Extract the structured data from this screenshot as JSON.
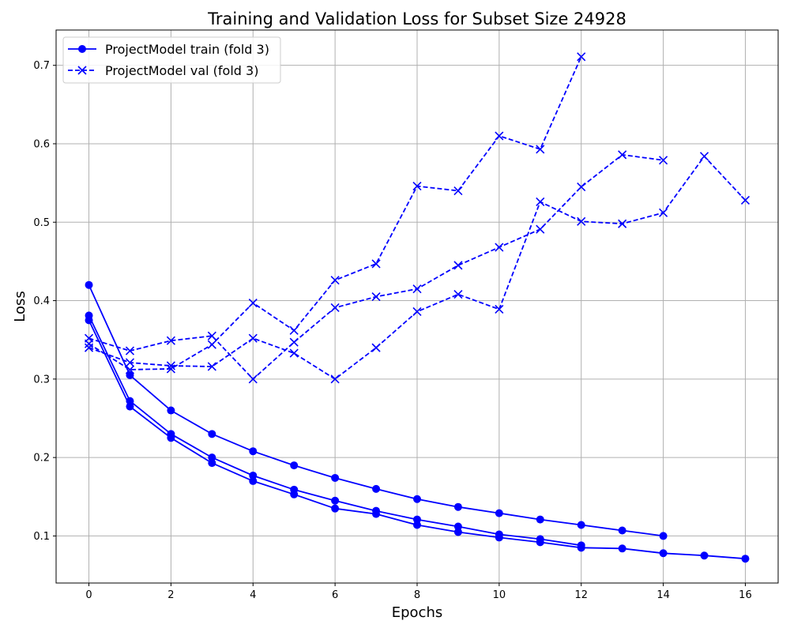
{
  "chart_data": {
    "type": "line",
    "title": "Training and Validation Loss for Subset Size 24928",
    "xlabel": "Epochs",
    "ylabel": "Loss",
    "xlim": [
      -0.8,
      16.8
    ],
    "ylim": [
      0.04,
      0.745
    ],
    "xticks": [
      0,
      2,
      4,
      6,
      8,
      10,
      12,
      14,
      16
    ],
    "yticks": [
      0.1,
      0.2,
      0.3,
      0.4,
      0.5,
      0.6,
      0.7
    ],
    "grid": true,
    "legend_position": "top-left",
    "color": "#0000ff",
    "legend": [
      {
        "label": "ProjectModel train (fold 3)",
        "style": "solid",
        "marker": "circle"
      },
      {
        "label": "ProjectModel val (fold 3)",
        "style": "dashed",
        "marker": "x"
      }
    ],
    "series": [
      {
        "kind": "train",
        "x": [
          0,
          1,
          2,
          3,
          4,
          5,
          6,
          7,
          8,
          9,
          10,
          11,
          12,
          13,
          14
        ],
        "y": [
          0.42,
          0.305,
          0.26,
          0.23,
          0.208,
          0.19,
          0.174,
          0.16,
          0.147,
          0.137,
          0.129,
          0.121,
          0.114,
          0.107,
          0.1
        ]
      },
      {
        "kind": "train",
        "x": [
          0,
          1,
          2,
          3,
          4,
          5,
          6,
          7,
          8,
          9,
          10,
          11,
          12
        ],
        "y": [
          0.381,
          0.272,
          0.23,
          0.2,
          0.177,
          0.159,
          0.145,
          0.132,
          0.121,
          0.112,
          0.102,
          0.096,
          0.088
        ]
      },
      {
        "kind": "train",
        "x": [
          0,
          1,
          2,
          3,
          4,
          5,
          6,
          7,
          8,
          9,
          10,
          11,
          12,
          13,
          14,
          15,
          16
        ],
        "y": [
          0.375,
          0.265,
          0.225,
          0.193,
          0.17,
          0.153,
          0.135,
          0.128,
          0.114,
          0.105,
          0.098,
          0.092,
          0.085,
          0.084,
          0.078,
          0.075,
          0.071
        ]
      },
      {
        "kind": "val",
        "x": [
          0,
          1,
          2,
          3,
          4,
          5,
          6,
          7,
          8,
          9,
          10,
          11,
          12
        ],
        "y": [
          0.345,
          0.312,
          0.313,
          0.344,
          0.397,
          0.362,
          0.426,
          0.447,
          0.546,
          0.54,
          0.61,
          0.593,
          0.711
        ]
      },
      {
        "kind": "val",
        "x": [
          0,
          1,
          2,
          3,
          4,
          5,
          6,
          7,
          8,
          9,
          10,
          11,
          12,
          13,
          14
        ],
        "y": [
          0.352,
          0.336,
          0.349,
          0.355,
          0.3,
          0.347,
          0.391,
          0.405,
          0.415,
          0.445,
          0.468,
          0.491,
          0.545,
          0.586,
          0.579
        ]
      },
      {
        "kind": "val",
        "x": [
          0,
          1,
          2,
          3,
          4,
          5,
          6,
          7,
          8,
          9,
          10,
          11,
          12,
          13,
          14,
          15,
          16
        ],
        "y": [
          0.34,
          0.321,
          0.317,
          0.316,
          0.352,
          0.333,
          0.3,
          0.34,
          0.386,
          0.408,
          0.389,
          0.526,
          0.501,
          0.498,
          0.512,
          0.584,
          0.528
        ]
      }
    ]
  }
}
